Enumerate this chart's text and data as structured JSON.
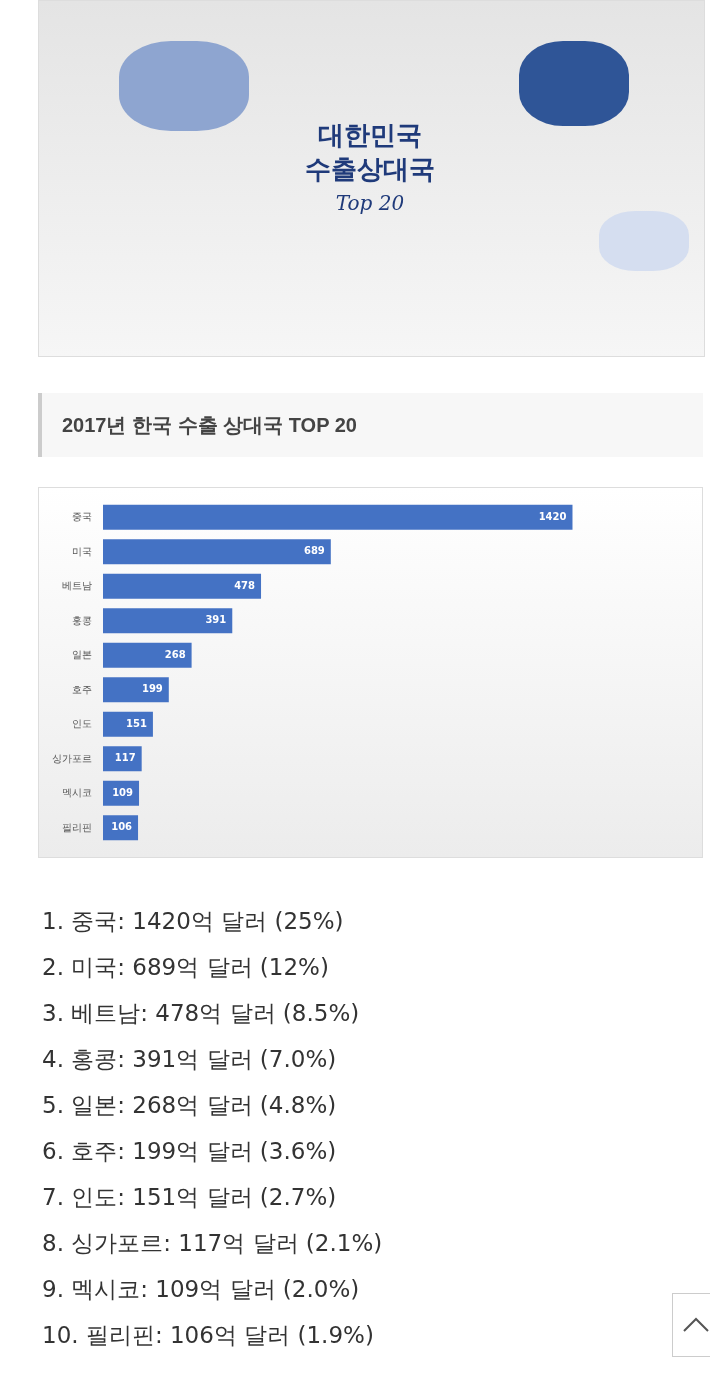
{
  "chart_data": {
    "type": "bar",
    "orientation": "horizontal",
    "title": "2017년 한국 수출 상대국 TOP 20",
    "categories": [
      "중국",
      "미국",
      "베트남",
      "홍콩",
      "일본",
      "호주",
      "인도",
      "싱가포르",
      "멕시코",
      "필리핀"
    ],
    "values": [
      1420,
      689,
      478,
      391,
      268,
      199,
      151,
      117,
      109,
      106
    ],
    "color": "#4472c4",
    "data_labels": true,
    "tick_labels": "y",
    "legend": false,
    "annotations": [
      "대한민국",
      "수출상대국",
      "Top 20",
      "1. 중국: 1420억 달러 (25%)",
      "2. 미국: 689억 달러 (12%)",
      "3. 베트남: 478억 달러 (8.5%)",
      "4. 홍콩: 391억 달러 (7.0%)",
      "5. 일본: 268억 달러 (4.8%)",
      "6. 호주: 199억 달러 (3.6%)",
      "7. 인도: 151억 달러 (2.7%)",
      "8. 싱가포르: 117억 달러 (2.1%)",
      "9. 멕시코: 109억 달러 (2.0%)",
      "10. 필리핀: 106억 달러 (1.9%)"
    ]
  }
}
